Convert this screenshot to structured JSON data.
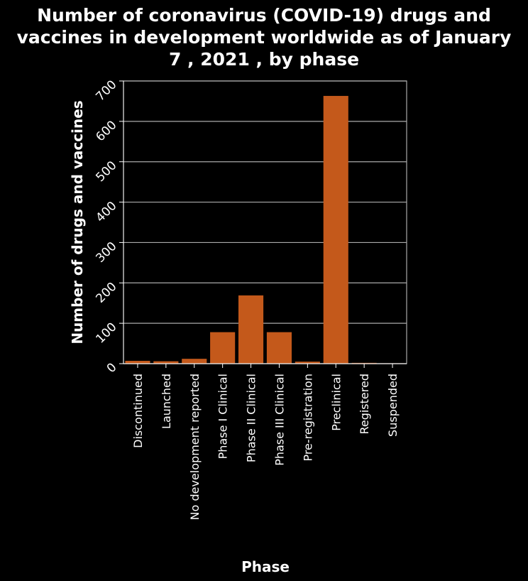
{
  "chart_data": {
    "type": "bar",
    "title_lines": [
      "Number of coronavirus (COVID-19) drugs and",
      "vaccines in development worldwide as of January",
      "7 , 2021 , by phase"
    ],
    "title": "Number of coronavirus (COVID-19) drugs and vaccines in development worldwide as of January 7 , 2021 , by phase",
    "xlabel": "Phase",
    "ylabel": "Number of drugs and vaccines",
    "categories": [
      "Discontinued",
      "Launched",
      "No development reported",
      "Phase I Clinical",
      "Phase II Clinical",
      "Phase III Clinical",
      "Pre-registration",
      "Preclinical",
      "Registered",
      "Suspended"
    ],
    "values": [
      7,
      6,
      12,
      78,
      169,
      78,
      5,
      663,
      2,
      1
    ],
    "ylim": [
      0,
      700
    ],
    "yticks": [
      0,
      100,
      200,
      300,
      400,
      500,
      600,
      700
    ],
    "grid": true,
    "colors": {
      "bar": "#c4591b",
      "background": "#000000",
      "text": "#ffffff",
      "grid": "#aaaaaa"
    }
  }
}
